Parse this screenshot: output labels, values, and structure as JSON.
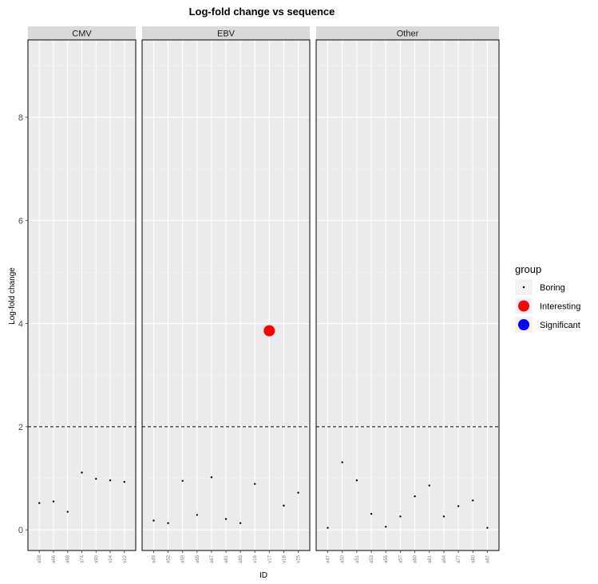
{
  "chart_data": {
    "type": "scatter",
    "title": "Log-fold change vs sequence",
    "xlabel": "ID",
    "ylabel": "Log-fold change",
    "ylim": [
      -0.4,
      9.5
    ],
    "yticks": [
      0,
      2,
      4,
      6,
      8
    ],
    "threshold": 2,
    "grid": true,
    "legend": {
      "title": "group",
      "placement": "right",
      "items": [
        {
          "label": "Boring",
          "color": "#000000",
          "size": "small"
        },
        {
          "label": "Interesting",
          "color": "#ff0000",
          "size": "large"
        },
        {
          "label": "Significant",
          "color": "#0000ff",
          "size": "large"
        }
      ]
    },
    "panels": [
      {
        "name": "CMV",
        "categories": [
          "a58",
          "a66",
          "a68",
          "a74",
          "a90",
          "v14",
          "v22"
        ],
        "points": [
          {
            "x": "a58",
            "y": 0.52,
            "group": "Boring"
          },
          {
            "x": "a66",
            "y": 0.55,
            "group": "Boring"
          },
          {
            "x": "a68",
            "y": 0.35,
            "group": "Boring"
          },
          {
            "x": "a74",
            "y": 1.11,
            "group": "Boring"
          },
          {
            "x": "a90",
            "y": 0.99,
            "group": "Boring"
          },
          {
            "x": "v14",
            "y": 0.96,
            "group": "Boring"
          },
          {
            "x": "v22",
            "y": 0.93,
            "group": "Boring"
          }
        ]
      },
      {
        "name": "EBV",
        "categories": [
          "a49",
          "a52",
          "a59",
          "a65",
          "a67",
          "a81",
          "a89",
          "v16",
          "v17",
          "v18",
          "v25"
        ],
        "points": [
          {
            "x": "a49",
            "y": 0.18,
            "group": "Boring"
          },
          {
            "x": "a52",
            "y": 0.13,
            "group": "Boring"
          },
          {
            "x": "a59",
            "y": 0.95,
            "group": "Boring"
          },
          {
            "x": "a65",
            "y": 0.29,
            "group": "Boring"
          },
          {
            "x": "a67",
            "y": 1.02,
            "group": "Boring"
          },
          {
            "x": "a81",
            "y": 0.21,
            "group": "Boring"
          },
          {
            "x": "a89",
            "y": 0.13,
            "group": "Boring"
          },
          {
            "x": "v16",
            "y": 0.89,
            "group": "Boring"
          },
          {
            "x": "v17",
            "y": 3.86,
            "group": "Interesting"
          },
          {
            "x": "v18",
            "y": 0.47,
            "group": "Boring"
          },
          {
            "x": "v25",
            "y": 0.72,
            "group": "Boring"
          }
        ]
      },
      {
        "name": "Other",
        "categories": [
          "a47",
          "a50",
          "a51",
          "a53",
          "a55",
          "a57",
          "a60",
          "a61",
          "a64",
          "a77",
          "a80",
          "a87"
        ],
        "points": [
          {
            "x": "a47",
            "y": 0.04,
            "group": "Boring"
          },
          {
            "x": "a50",
            "y": 1.31,
            "group": "Boring"
          },
          {
            "x": "a51",
            "y": 0.96,
            "group": "Boring"
          },
          {
            "x": "a53",
            "y": 0.31,
            "group": "Boring"
          },
          {
            "x": "a55",
            "y": 0.06,
            "group": "Boring"
          },
          {
            "x": "a57",
            "y": 0.26,
            "group": "Boring"
          },
          {
            "x": "a60",
            "y": 0.65,
            "group": "Boring"
          },
          {
            "x": "a61",
            "y": 0.86,
            "group": "Boring"
          },
          {
            "x": "a64",
            "y": 0.26,
            "group": "Boring"
          },
          {
            "x": "a77",
            "y": 0.46,
            "group": "Boring"
          },
          {
            "x": "a80",
            "y": 0.57,
            "group": "Boring"
          },
          {
            "x": "a87",
            "y": 0.04,
            "group": "Boring"
          }
        ]
      }
    ]
  }
}
